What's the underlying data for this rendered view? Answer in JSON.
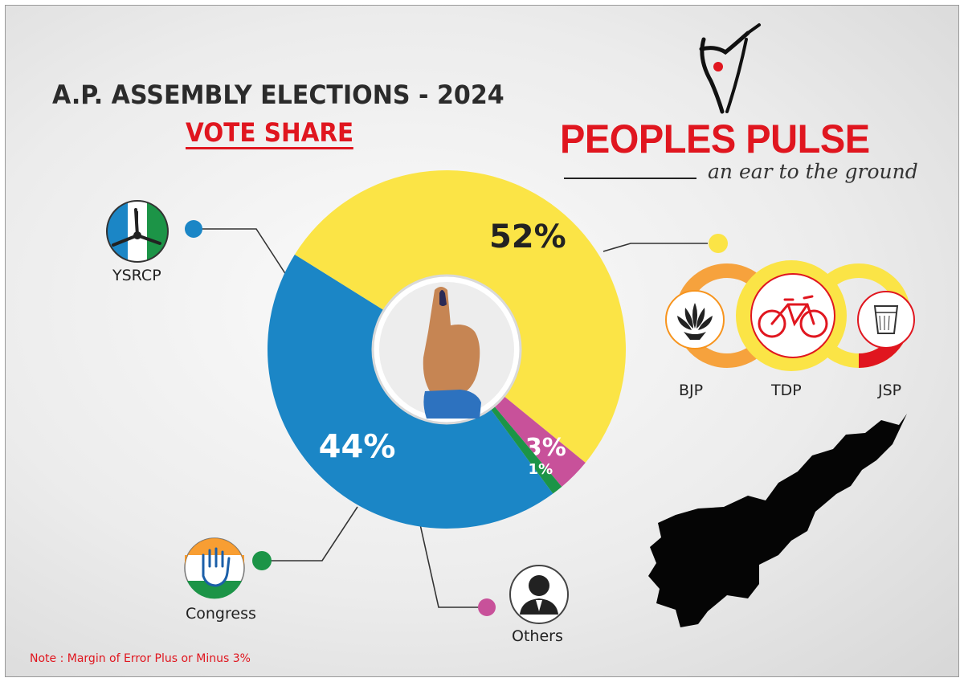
{
  "header": {
    "title": "A.P. ASSEMBLY ELECTIONS - 2024",
    "subtitle": "VOTE SHARE"
  },
  "brand": {
    "name": "PEOPLES PULSE",
    "tagline": "an ear to the ground",
    "color": "#e0161f"
  },
  "chart_data": {
    "type": "pie",
    "title": "VOTE SHARE",
    "series": [
      {
        "name": "YSRCP",
        "value": 44,
        "label": "44%",
        "color": "#1b86c6"
      },
      {
        "name": "TDP - BJP - JSP",
        "value": 52,
        "label": "52%",
        "color": "#fbe446"
      },
      {
        "name": "Others",
        "value": 3,
        "label": "3%",
        "color": "#c8519a"
      },
      {
        "name": "Congress",
        "value": 1,
        "label": "1%",
        "color": "#1c9447"
      }
    ]
  },
  "parties": {
    "ysrcp": "YSRCP",
    "congress": "Congress",
    "others": "Others",
    "bjp": "BJP",
    "tdp": "TDP",
    "jsp": "JSP"
  },
  "note": "Note : Margin of Error Plus or Minus 3%",
  "icons": [
    "ysrcp-fan-symbol-icon",
    "congress-hand-symbol-icon",
    "others-person-icon",
    "bjp-lotus-icon",
    "tdp-bicycle-icon",
    "jsp-glass-icon",
    "voting-finger-icon",
    "andhra-pradesh-map-icon",
    "peoples-pulse-logo-icon"
  ]
}
